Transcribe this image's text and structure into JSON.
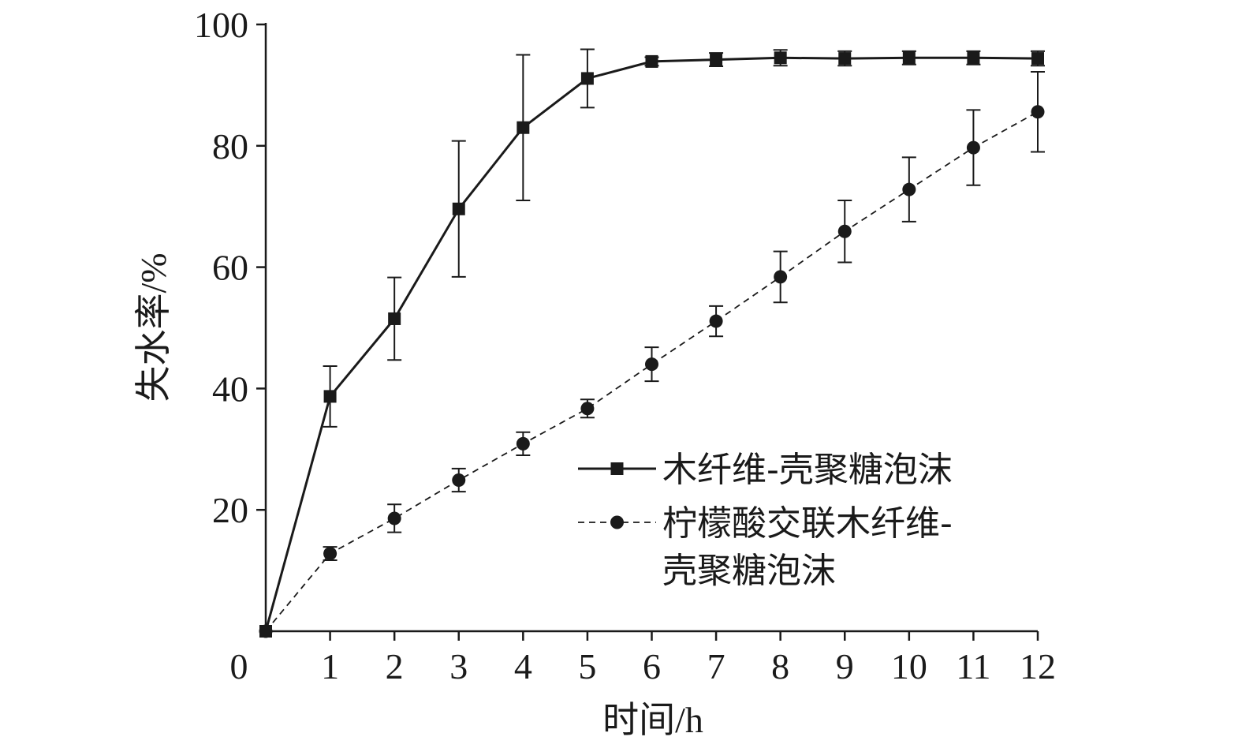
{
  "chart_data": {
    "type": "line",
    "title": "",
    "xlabel": "时间/h",
    "ylabel": "失水率/%",
    "x": [
      0,
      1,
      2,
      3,
      4,
      5,
      6,
      7,
      8,
      9,
      10,
      11,
      12
    ],
    "xlim": [
      0,
      12
    ],
    "ylim": [
      0,
      100
    ],
    "x_ticks": [
      "0",
      "1",
      "2",
      "3",
      "4",
      "5",
      "6",
      "7",
      "8",
      "9",
      "10",
      "11",
      "12"
    ],
    "y_ticks": [
      "20",
      "40",
      "60",
      "80",
      "100"
    ],
    "grid": false,
    "legend_position": "lower-right",
    "series": [
      {
        "name": "木纤维-壳聚糖泡沫",
        "line_style": "solid",
        "marker": "square",
        "color": "#1a1a1a",
        "values": [
          0,
          38.7,
          51.5,
          69.6,
          83.0,
          91.1,
          93.9,
          94.2,
          94.5,
          94.4,
          94.5,
          94.5,
          94.4
        ],
        "errors": [
          0,
          5.0,
          6.8,
          11.2,
          12.0,
          4.8,
          0.7,
          1.1,
          1.3,
          1.2,
          1.1,
          1.1,
          1.2
        ]
      },
      {
        "name": "柠檬酸交联木纤维-壳聚糖泡沫",
        "legend_lines": [
          "柠檬酸交联木纤维-",
          "壳聚糖泡沫"
        ],
        "line_style": "dashed",
        "marker": "circle",
        "color": "#1a1a1a",
        "values": [
          0,
          12.8,
          18.6,
          24.9,
          30.9,
          36.7,
          44.0,
          51.1,
          58.4,
          65.9,
          72.8,
          79.7,
          85.6
        ],
        "errors": [
          0,
          1.1,
          2.3,
          1.9,
          1.9,
          1.5,
          2.8,
          2.5,
          4.2,
          5.1,
          5.3,
          6.2,
          6.6
        ]
      }
    ]
  }
}
